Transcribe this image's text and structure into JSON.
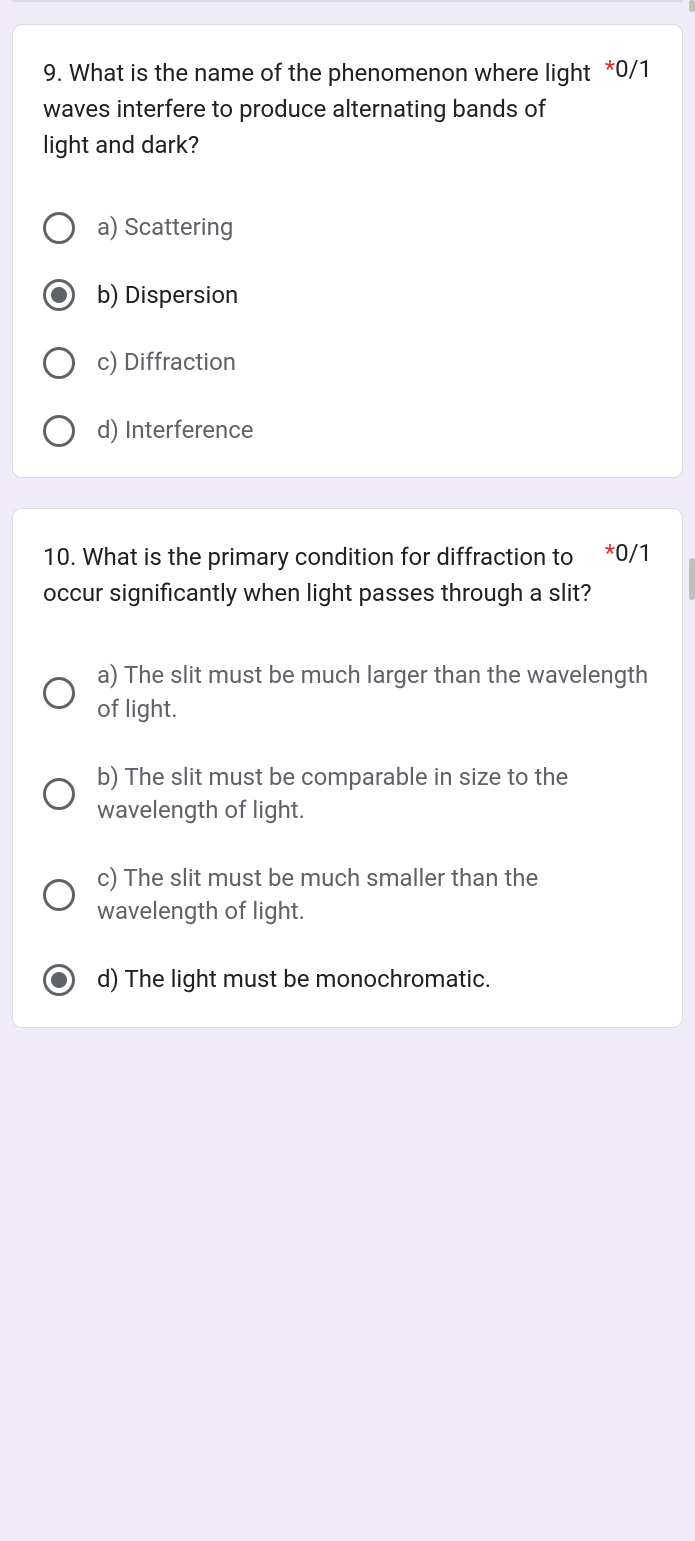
{
  "colors": {
    "page_bg": "#f0ebf8",
    "card_bg": "#ffffff",
    "card_border": "#dadce0",
    "text_primary": "#202124",
    "text_secondary": "#5f6368",
    "required": "#d93025",
    "radio_border": "#5f6368",
    "radio_fill": "#5f6368",
    "scroll_ind": "#bfbfbf"
  },
  "typography": {
    "font_family": "Roboto, Arial, sans-serif",
    "question_fontsize": 24,
    "option_fontsize": 24,
    "score_fontsize": 24
  },
  "questions": [
    {
      "text": "9. What is the name of the phenomenon where light waves interfere to produce alternating bands of light and dark?",
      "required_mark": "*",
      "score": "0/1",
      "options": [
        {
          "label": "a) Scattering",
          "selected": false
        },
        {
          "label": "b) Dispersion",
          "selected": true
        },
        {
          "label": "c) Diffraction",
          "selected": false
        },
        {
          "label": "d) Interference",
          "selected": false
        }
      ]
    },
    {
      "text": "10. What is the primary condition for diffraction to occur significantly when light passes through a slit?",
      "required_mark": "*",
      "score": "0/1",
      "options": [
        {
          "label": "a) The slit must be much larger than the wavelength of light.",
          "selected": false
        },
        {
          "label": "b) The slit must be comparable in size to the wavelength of light.",
          "selected": false
        },
        {
          "label": "c) The slit must be much smaller than the wavelength of light.",
          "selected": false
        },
        {
          "label": "d) The light must be monochromatic.",
          "selected": true
        }
      ]
    }
  ]
}
